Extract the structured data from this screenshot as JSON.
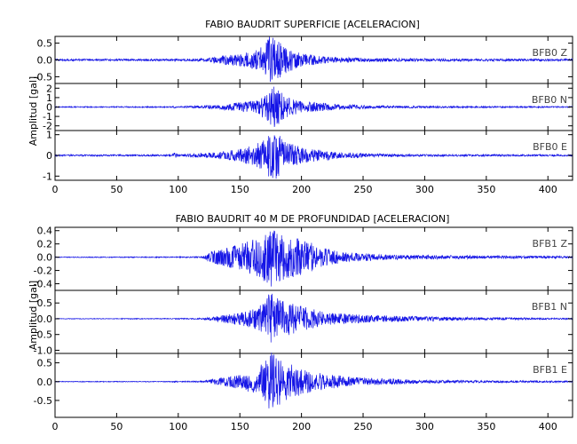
{
  "chart_data": [
    {
      "type": "line",
      "title": "FABIO BAUDRIT SUPERFICIE [ACELERACION]",
      "ylabel": "Amplitud [gal]",
      "xlabel": "",
      "xlim": [
        0,
        420
      ],
      "x_ticks": [
        0,
        50,
        100,
        150,
        200,
        250,
        300,
        350,
        400
      ],
      "color": "#1414e6",
      "panels": [
        {
          "label": "BFB0   Z",
          "ylim": [
            -0.7,
            0.7
          ],
          "y_ticks": [
            "0.5",
            "0.0",
            "-0.5"
          ],
          "y_tick_values": [
            0.5,
            0.0,
            -0.5
          ],
          "envelope": [
            [
              0,
              0.03
            ],
            [
              95,
              0.03
            ],
            [
              97,
              0.06
            ],
            [
              100,
              0.03
            ],
            [
              120,
              0.04
            ],
            [
              130,
              0.1
            ],
            [
              150,
              0.2
            ],
            [
              165,
              0.3
            ],
            [
              175,
              0.75
            ],
            [
              185,
              0.45
            ],
            [
              200,
              0.2
            ],
            [
              220,
              0.1
            ],
            [
              250,
              0.06
            ],
            [
              300,
              0.04
            ],
            [
              420,
              0.03
            ]
          ]
        },
        {
          "label": "BFB0   N",
          "ylim": [
            -2.5,
            2.5
          ],
          "y_ticks": [
            "2",
            "1",
            "0",
            "-1",
            "-2"
          ],
          "y_tick_values": [
            2,
            1,
            0,
            -1,
            -2
          ],
          "envelope": [
            [
              0,
              0.06
            ],
            [
              95,
              0.06
            ],
            [
              97,
              0.15
            ],
            [
              100,
              0.06
            ],
            [
              130,
              0.2
            ],
            [
              150,
              0.5
            ],
            [
              165,
              0.8
            ],
            [
              178,
              2.3
            ],
            [
              190,
              1.0
            ],
            [
              200,
              0.6
            ],
            [
              230,
              0.3
            ],
            [
              260,
              0.15
            ],
            [
              300,
              0.1
            ],
            [
              420,
              0.06
            ]
          ]
        },
        {
          "label": "BFB0   E",
          "ylim": [
            -1.2,
            1.2
          ],
          "y_ticks": [
            "1",
            "0",
            "-1"
          ],
          "y_tick_values": [
            1,
            0,
            -1
          ],
          "envelope": [
            [
              0,
              0.04
            ],
            [
              95,
              0.04
            ],
            [
              97,
              0.15
            ],
            [
              100,
              0.04
            ],
            [
              130,
              0.15
            ],
            [
              150,
              0.3
            ],
            [
              165,
              0.6
            ],
            [
              178,
              1.25
            ],
            [
              190,
              0.6
            ],
            [
              205,
              0.35
            ],
            [
              230,
              0.15
            ],
            [
              260,
              0.08
            ],
            [
              300,
              0.05
            ],
            [
              420,
              0.04
            ]
          ]
        }
      ]
    },
    {
      "type": "line",
      "title": "FABIO BAUDRIT 40 M DE PROFUNDIDAD [ACELERACION]",
      "ylabel": "Amplitud [gal]",
      "xlabel": "",
      "xlim": [
        0,
        420
      ],
      "x_ticks": [
        0,
        50,
        100,
        150,
        200,
        250,
        300,
        350,
        400
      ],
      "color": "#1414e6",
      "panels": [
        {
          "label": "BFB1   Z",
          "ylim": [
            -0.5,
            0.45
          ],
          "y_ticks": [
            "0.4",
            "0.2",
            "0.0",
            "-0.2",
            "-0.4"
          ],
          "y_tick_values": [
            0.4,
            0.2,
            0.0,
            -0.2,
            -0.4
          ],
          "envelope": [
            [
              0,
              0.006
            ],
            [
              100,
              0.008
            ],
            [
              120,
              0.01
            ],
            [
              125,
              0.08
            ],
            [
              150,
              0.2
            ],
            [
              165,
              0.3
            ],
            [
              175,
              0.45
            ],
            [
              185,
              0.35
            ],
            [
              205,
              0.25
            ],
            [
              215,
              0.15
            ],
            [
              240,
              0.07
            ],
            [
              270,
              0.04
            ],
            [
              300,
              0.03
            ],
            [
              420,
              0.015
            ]
          ]
        },
        {
          "label": "BFB1   N",
          "ylim": [
            -1.1,
            0.9
          ],
          "y_ticks": [
            "0.5",
            "0.0",
            "-0.5",
            "-1.0"
          ],
          "y_tick_values": [
            0.5,
            0.0,
            -0.5,
            -1.0
          ],
          "envelope": [
            [
              0,
              0.01
            ],
            [
              100,
              0.015
            ],
            [
              120,
              0.02
            ],
            [
              130,
              0.08
            ],
            [
              150,
              0.2
            ],
            [
              165,
              0.35
            ],
            [
              175,
              0.85
            ],
            [
              185,
              0.6
            ],
            [
              200,
              0.4
            ],
            [
              220,
              0.2
            ],
            [
              250,
              0.12
            ],
            [
              300,
              0.07
            ],
            [
              350,
              0.04
            ],
            [
              420,
              0.02
            ]
          ]
        },
        {
          "label": "BFB1   E",
          "ylim": [
            -0.95,
            0.75
          ],
          "y_ticks": [
            "0.5",
            "0.0",
            "-0.5"
          ],
          "y_tick_values": [
            0.5,
            0.0,
            -0.5
          ],
          "envelope": [
            [
              0,
              0.01
            ],
            [
              95,
              0.01
            ],
            [
              97,
              0.03
            ],
            [
              100,
              0.01
            ],
            [
              120,
              0.02
            ],
            [
              130,
              0.08
            ],
            [
              150,
              0.2
            ],
            [
              165,
              0.35
            ],
            [
              175,
              0.8
            ],
            [
              185,
              0.55
            ],
            [
              200,
              0.35
            ],
            [
              220,
              0.2
            ],
            [
              250,
              0.1
            ],
            [
              290,
              0.06
            ],
            [
              300,
              0.04
            ],
            [
              350,
              0.03
            ],
            [
              420,
              0.02
            ]
          ]
        }
      ]
    }
  ]
}
